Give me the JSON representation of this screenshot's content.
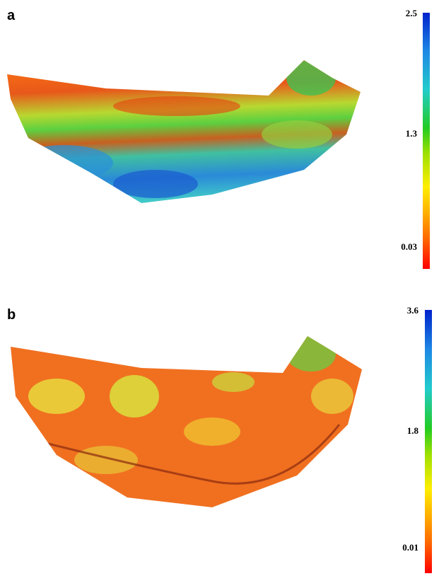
{
  "panels": [
    {
      "label": "a",
      "colorbar": {
        "ticks": [
          "2.5",
          "1.3",
          "0.03"
        ]
      }
    },
    {
      "label": "b",
      "colorbar": {
        "ticks": [
          "3.6",
          "1.8",
          "0.01"
        ]
      }
    }
  ]
}
